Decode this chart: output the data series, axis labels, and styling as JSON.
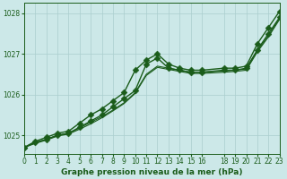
{
  "background_color": "#cce8e8",
  "grid_color": "#aacece",
  "line_color": "#1a5c1a",
  "title": "Graphe pression niveau de la mer (hPa)",
  "xlim": [
    0,
    23
  ],
  "ylim": [
    1024.55,
    1028.25
  ],
  "yticks": [
    1025,
    1026,
    1027,
    1028
  ],
  "xticks": [
    0,
    1,
    2,
    3,
    4,
    5,
    6,
    7,
    8,
    9,
    10,
    11,
    12,
    13,
    14,
    15,
    16,
    18,
    19,
    20,
    21,
    22,
    23
  ],
  "xtick_labels": [
    "0",
    "1",
    "2",
    "3",
    "4",
    "5",
    "6",
    "7",
    "8",
    "9",
    "10",
    "11",
    "12",
    "13",
    "14",
    "15",
    "16",
    "18",
    "19",
    "20",
    "21",
    "22",
    "23"
  ],
  "series": [
    {
      "x": [
        0,
        1,
        2,
        3,
        4,
        5,
        6,
        7,
        8,
        9,
        10,
        11,
        12,
        13,
        14,
        15,
        16,
        18,
        19,
        20,
        21,
        22,
        23
      ],
      "y": [
        1024.7,
        1024.85,
        1024.95,
        1025.05,
        1025.1,
        1025.3,
        1025.5,
        1025.65,
        1025.85,
        1026.05,
        1026.6,
        1026.85,
        1027.0,
        1026.75,
        1026.65,
        1026.6,
        1026.6,
        1026.65,
        1026.65,
        1026.7,
        1027.25,
        1027.65,
        1028.05
      ],
      "marker": true,
      "marker_style": "D",
      "marker_size": 3.5,
      "lw": 1.0
    },
    {
      "x": [
        0,
        1,
        2,
        3,
        4,
        5,
        6,
        7,
        8,
        9,
        10,
        11,
        12,
        13,
        14,
        15,
        16,
        18,
        19,
        20,
        21,
        22,
        23
      ],
      "y": [
        1024.7,
        1024.82,
        1024.9,
        1025.0,
        1025.05,
        1025.2,
        1025.35,
        1025.5,
        1025.7,
        1025.9,
        1026.1,
        1026.75,
        1026.9,
        1026.65,
        1026.6,
        1026.55,
        1026.55,
        1026.6,
        1026.6,
        1026.65,
        1027.1,
        1027.5,
        1027.9
      ],
      "marker": true,
      "marker_style": "D",
      "marker_size": 3.5,
      "lw": 1.0
    },
    {
      "x": [
        0,
        1,
        2,
        3,
        4,
        5,
        6,
        7,
        8,
        9,
        10,
        11,
        12,
        13,
        14,
        15,
        16,
        18,
        19,
        20,
        21,
        22,
        23
      ],
      "y": [
        1024.7,
        1024.82,
        1024.9,
        1025.0,
        1025.05,
        1025.18,
        1025.32,
        1025.46,
        1025.62,
        1025.8,
        1026.05,
        1026.5,
        1026.7,
        1026.65,
        1026.6,
        1026.55,
        1026.55,
        1026.58,
        1026.6,
        1026.63,
        1027.08,
        1027.45,
        1027.88
      ],
      "marker": false,
      "marker_style": null,
      "marker_size": 0,
      "lw": 0.8
    },
    {
      "x": [
        0,
        1,
        2,
        3,
        4,
        5,
        6,
        7,
        8,
        9,
        10,
        11,
        12,
        13,
        14,
        15,
        16,
        18,
        19,
        20,
        21,
        22,
        23
      ],
      "y": [
        1024.7,
        1024.8,
        1024.88,
        1024.98,
        1025.03,
        1025.15,
        1025.28,
        1025.43,
        1025.6,
        1025.78,
        1026.03,
        1026.47,
        1026.67,
        1026.62,
        1026.57,
        1026.52,
        1026.52,
        1026.55,
        1026.57,
        1026.6,
        1027.05,
        1027.42,
        1027.85
      ],
      "marker": false,
      "marker_style": null,
      "marker_size": 0,
      "lw": 0.8
    }
  ],
  "tick_fontsize": 5.5,
  "title_fontsize": 6.5,
  "ytick_fontsize": 5.5
}
